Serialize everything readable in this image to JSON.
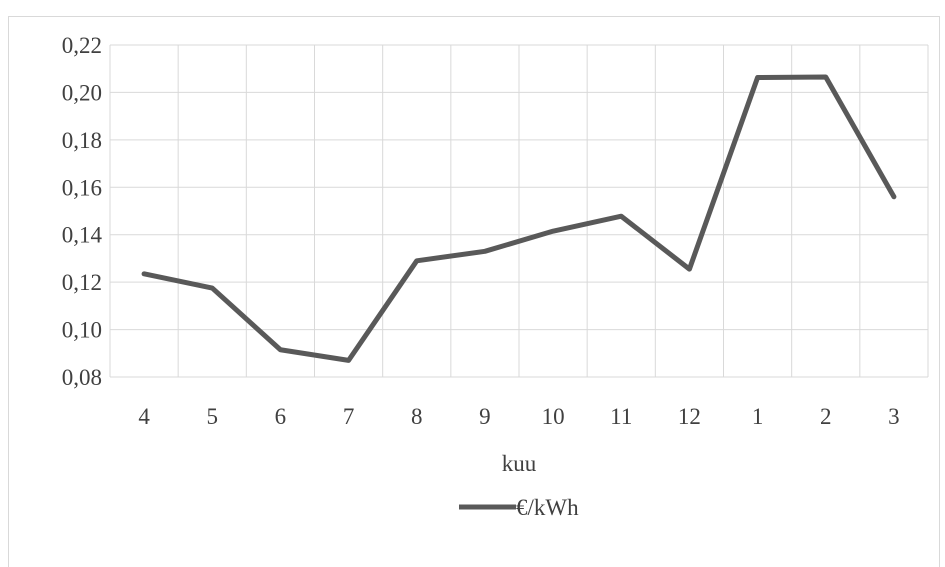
{
  "chart_data": {
    "type": "line",
    "categories": [
      "4",
      "5",
      "6",
      "7",
      "8",
      "9",
      "10",
      "11",
      "12",
      "1",
      "2",
      "3"
    ],
    "series": [
      {
        "name": "€/kWh",
        "color": "#595959",
        "values": [
          0.1235,
          0.1175,
          0.0915,
          0.087,
          0.129,
          0.133,
          0.1415,
          0.1478,
          0.1255,
          0.2063,
          0.2065,
          0.156
        ]
      }
    ],
    "y_ticks": [
      "0,08",
      "0,10",
      "0,12",
      "0,14",
      "0,16",
      "0,18",
      "0,20",
      "0,22"
    ],
    "xlabel": "kuu",
    "ylabel": "",
    "title": "",
    "ylim": [
      0.08,
      0.22
    ],
    "grid": true,
    "legend_position": "bottom",
    "gridline_color": "#d9d9d9"
  }
}
